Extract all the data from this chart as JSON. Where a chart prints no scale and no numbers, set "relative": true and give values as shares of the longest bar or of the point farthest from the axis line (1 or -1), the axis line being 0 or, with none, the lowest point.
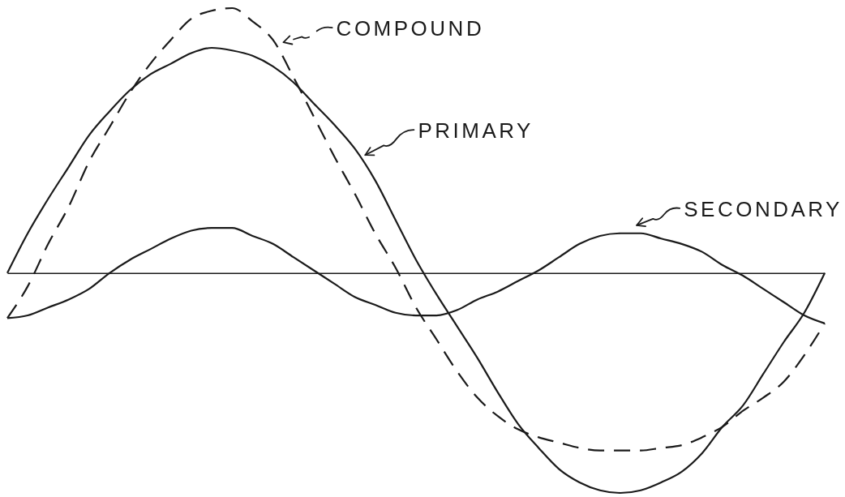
{
  "chart_data": {
    "type": "line",
    "relative": true,
    "legend": "top right",
    "categories": [
      null,
      null,
      null,
      null,
      null,
      null,
      null,
      null,
      null,
      null,
      null,
      null,
      null,
      null,
      null,
      null,
      null,
      null,
      null,
      null,
      null,
      null,
      null,
      null,
      null,
      null,
      null,
      null,
      null,
      null,
      null,
      null,
      null,
      null,
      null,
      null,
      null,
      null,
      null,
      null,
      null
    ],
    "series": [
      {
        "name": "PRIMARY",
        "color": "#1a1a1a",
        "line_style": "solid",
        "values": [
          0,
          0.15,
          0.28,
          0.4,
          0.52,
          0.61,
          0.69,
          0.75,
          0.79,
          0.83,
          0.85,
          0.84,
          0.82,
          0.78,
          0.72,
          0.64,
          0.56,
          0.47,
          0.35,
          0.2,
          0.05,
          -0.08,
          -0.2,
          -0.32,
          -0.45,
          -0.57,
          -0.66,
          -0.74,
          -0.79,
          -0.82,
          -0.83,
          -0.82,
          -0.79,
          -0.75,
          -0.68,
          -0.58,
          -0.5,
          -0.38,
          -0.26,
          -0.15,
          0
        ]
      },
      {
        "name": "SECONDARY",
        "color": "#1a1a1a",
        "line_style": "solid",
        "values": [
          -0.17,
          -0.16,
          -0.13,
          -0.1,
          -0.06,
          0,
          0.05,
          0.09,
          0.13,
          0.16,
          0.17,
          0.17,
          0.14,
          0.11,
          0.06,
          0.01,
          -0.04,
          -0.09,
          -0.12,
          -0.15,
          -0.16,
          -0.16,
          -0.14,
          -0.1,
          -0.07,
          -0.03,
          0.01,
          0.06,
          0.11,
          0.14,
          0.15,
          0.15,
          0.13,
          0.11,
          0.08,
          0.03,
          -0.01,
          -0.06,
          -0.11,
          -0.16,
          -0.19
        ]
      },
      {
        "name": "COMPOUND",
        "color": "#1a1a1a",
        "line_style": "dashed",
        "values": [
          -0.17,
          -0.05,
          0.11,
          0.25,
          0.42,
          0.55,
          0.68,
          0.79,
          0.88,
          0.96,
          0.99,
          1,
          0.95,
          0.88,
          0.74,
          0.59,
          0.44,
          0.3,
          0.15,
          0.02,
          -0.13,
          -0.25,
          -0.37,
          -0.47,
          -0.54,
          -0.59,
          -0.62,
          -0.64,
          -0.66,
          -0.67,
          -0.67,
          -0.67,
          -0.66,
          -0.65,
          -0.62,
          -0.58,
          -0.52,
          -0.47,
          -0.41,
          -0.31,
          -0.19
        ]
      }
    ]
  }
}
